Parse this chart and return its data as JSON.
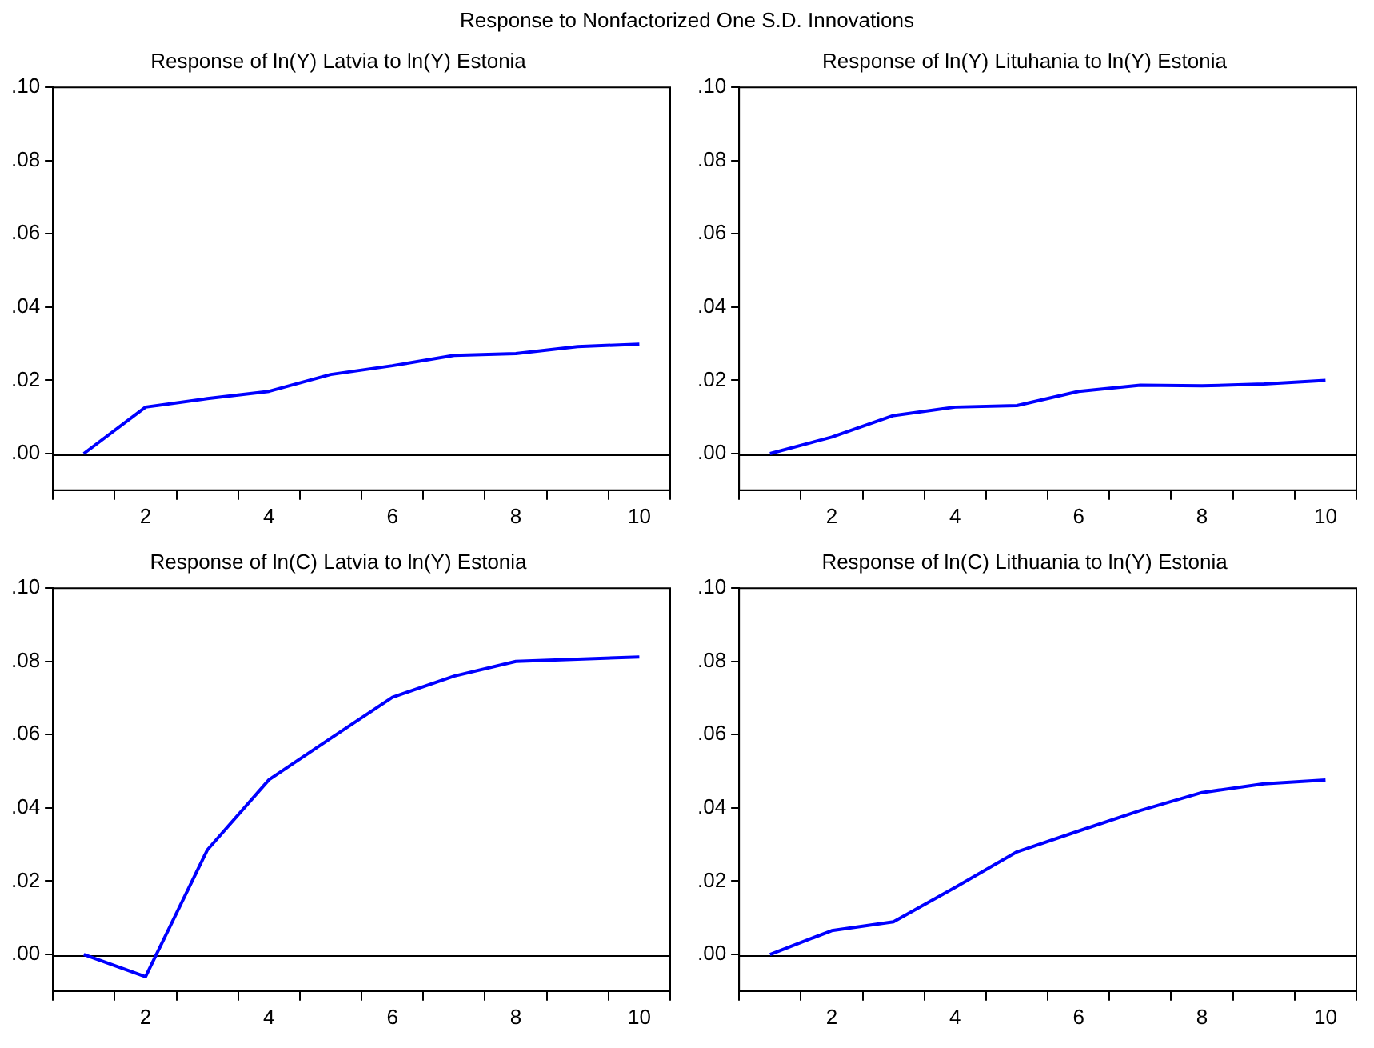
{
  "chart_data": [
    {
      "type": "line",
      "title": "Response of ln(Y) Latvia to ln(Y) Estonia",
      "annotations": [
        "Response to Nonfactorized One S.D. Innovations"
      ],
      "categories": [
        null,
        "2",
        null,
        "4",
        null,
        "6",
        null,
        "8",
        null,
        "10"
      ],
      "series": [
        {
          "color": "#0000ff",
          "values": [
            0,
            0.0127,
            0.015,
            0.017,
            0.0216,
            0.024,
            0.0268,
            0.0273,
            0.0292,
            0.0299
          ]
        }
      ],
      "ylim": [
        -0.01,
        0.1
      ],
      "yticks": [
        {
          "value": 0,
          "label": ".00"
        },
        {
          "value": 0.02,
          "label": ".02"
        },
        {
          "value": 0.04,
          "label": ".04"
        },
        {
          "value": 0.06,
          "label": ".06"
        },
        {
          "value": 0.08,
          "label": ".08"
        },
        {
          "value": 0.1,
          "label": ".10"
        }
      ],
      "ref_lines": [
        {
          "axis": "y",
          "value": 0,
          "color": "#000000"
        }
      ],
      "grid": false,
      "legend": false,
      "marker": "none",
      "line_style": "solid"
    },
    {
      "type": "line",
      "title": "Response of ln(Y) Lituhania to ln(Y) Estonia",
      "categories": [
        null,
        "2",
        null,
        "4",
        null,
        "6",
        null,
        "8",
        null,
        "10"
      ],
      "series": [
        {
          "color": "#0000ff",
          "values": [
            0,
            0.0045,
            0.0104,
            0.0127,
            0.0131,
            0.017,
            0.0187,
            0.0185,
            0.019,
            0.02
          ]
        }
      ],
      "ylim": [
        -0.01,
        0.1
      ],
      "yticks": [
        {
          "value": 0,
          "label": ".00"
        },
        {
          "value": 0.02,
          "label": ".02"
        },
        {
          "value": 0.04,
          "label": ".04"
        },
        {
          "value": 0.06,
          "label": ".06"
        },
        {
          "value": 0.08,
          "label": ".08"
        },
        {
          "value": 0.1,
          "label": ".10"
        }
      ],
      "ref_lines": [
        {
          "axis": "y",
          "value": 0,
          "color": "#000000"
        }
      ],
      "grid": false,
      "legend": false,
      "marker": "none",
      "line_style": "solid"
    },
    {
      "type": "line",
      "title": "Response of ln(C) Latvia to ln(Y) Estonia",
      "categories": [
        null,
        "2",
        null,
        "4",
        null,
        "6",
        null,
        "8",
        null,
        "10"
      ],
      "series": [
        {
          "color": "#0000ff",
          "values": [
            0,
            -0.0061,
            0.0285,
            0.0477,
            0.059,
            0.0702,
            0.076,
            0.08,
            0.0806,
            0.0812
          ]
        }
      ],
      "ylim": [
        -0.01,
        0.1
      ],
      "yticks": [
        {
          "value": 0,
          "label": ".00"
        },
        {
          "value": 0.02,
          "label": ".02"
        },
        {
          "value": 0.04,
          "label": ".04"
        },
        {
          "value": 0.06,
          "label": ".06"
        },
        {
          "value": 0.08,
          "label": ".08"
        },
        {
          "value": 0.1,
          "label": ".10"
        }
      ],
      "ref_lines": [
        {
          "axis": "y",
          "value": 0,
          "color": "#000000"
        }
      ],
      "grid": false,
      "legend": false,
      "marker": "none",
      "line_style": "solid"
    },
    {
      "type": "line",
      "title": "Response of ln(C) Lithuania to ln(Y) Estonia",
      "categories": [
        null,
        "2",
        null,
        "4",
        null,
        "6",
        null,
        "8",
        null,
        "10"
      ],
      "series": [
        {
          "color": "#0000ff",
          "values": [
            0,
            0.0065,
            0.0089,
            0.0183,
            0.028,
            0.0337,
            0.0393,
            0.0442,
            0.0466,
            0.0476
          ]
        }
      ],
      "ylim": [
        -0.01,
        0.1
      ],
      "yticks": [
        {
          "value": 0,
          "label": ".00"
        },
        {
          "value": 0.02,
          "label": ".02"
        },
        {
          "value": 0.04,
          "label": ".04"
        },
        {
          "value": 0.06,
          "label": ".06"
        },
        {
          "value": 0.08,
          "label": ".08"
        },
        {
          "value": 0.1,
          "label": ".10"
        }
      ],
      "ref_lines": [
        {
          "axis": "y",
          "value": 0,
          "color": "#000000"
        }
      ],
      "grid": false,
      "legend": false,
      "marker": "none",
      "line_style": "solid"
    }
  ]
}
